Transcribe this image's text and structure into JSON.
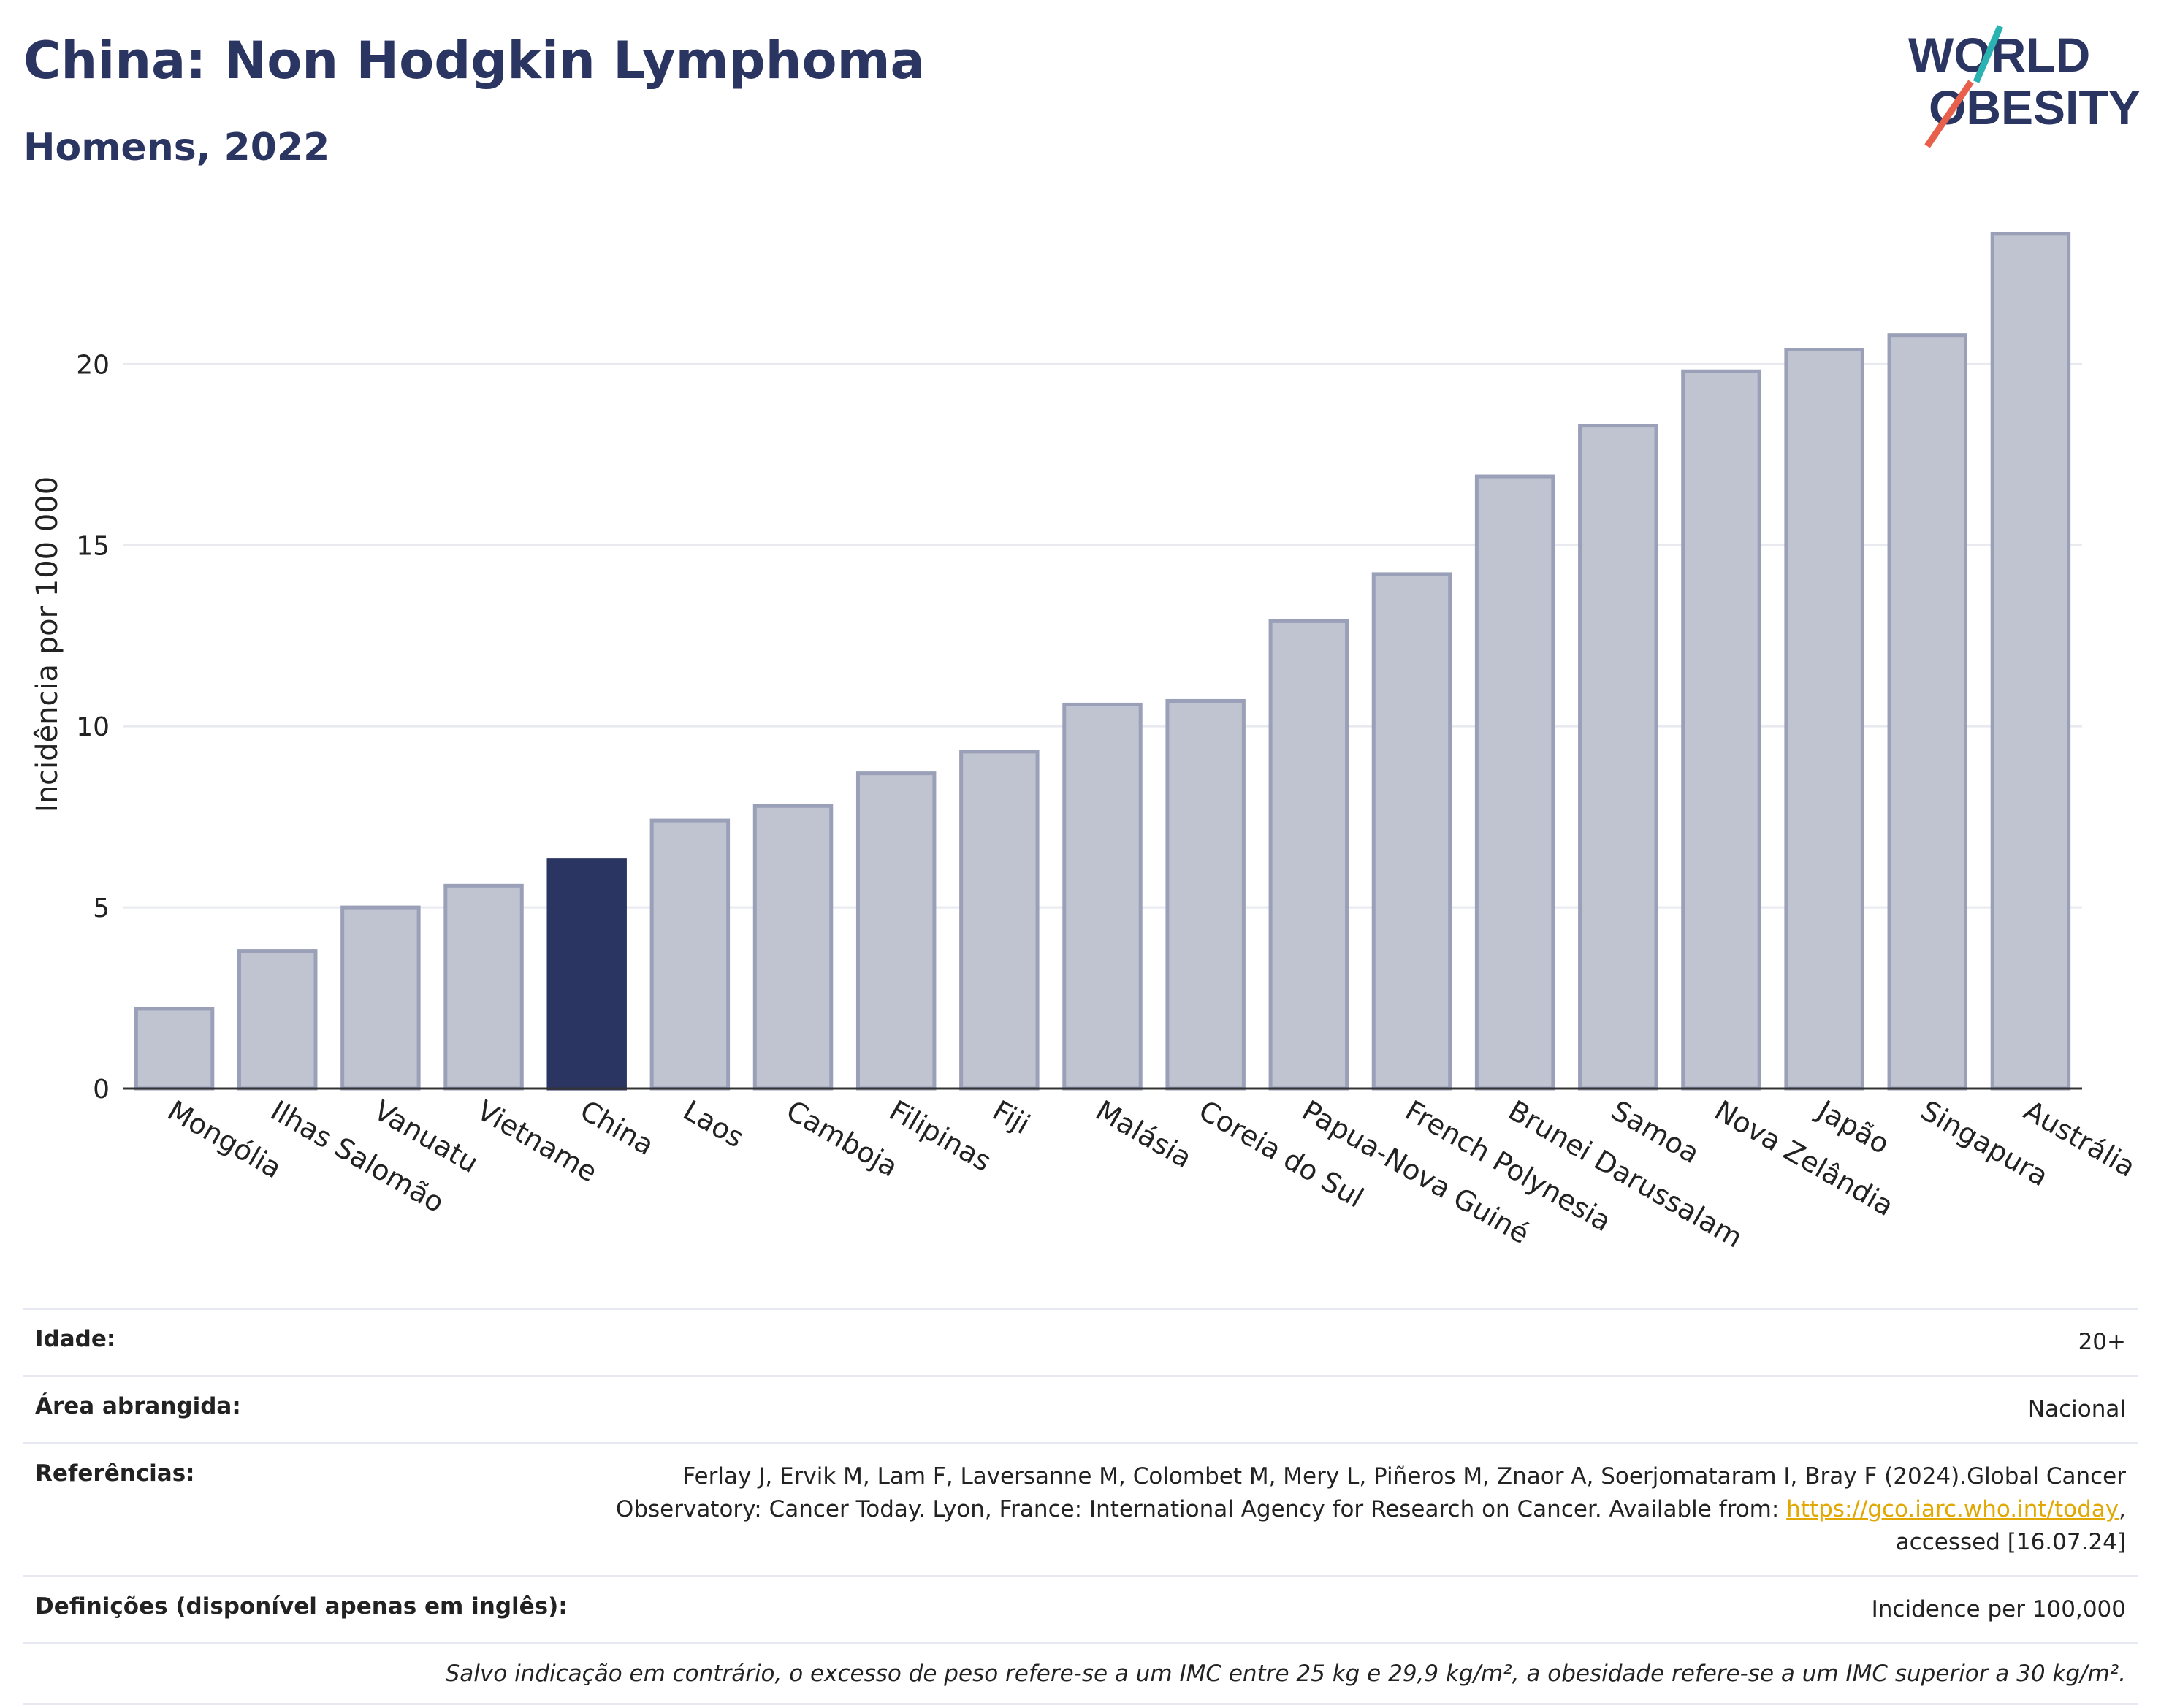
{
  "header": {
    "title": "China: Non Hodgkin Lymphoma",
    "subtitle": "Homens, 2022"
  },
  "logo": {
    "line1": "WORLD",
    "line2": "OBESITY"
  },
  "colors": {
    "highlight": "#2b3561",
    "bar": "#c0c3d0",
    "bar_border": "#9aa0b8",
    "grid": "#e8eaf0",
    "link": "#e0a800"
  },
  "chart_data": {
    "type": "bar",
    "ylabel": "Incidência por 100 000",
    "ylim": [
      0,
      24
    ],
    "yticks": [
      0,
      5,
      10,
      15,
      20
    ],
    "grid": true,
    "highlight": "China",
    "categories": [
      "Mongólia",
      "Ilhas Salomão",
      "Vanuatu",
      "Vietname",
      "China",
      "Laos",
      "Camboja",
      "Filipinas",
      "Fiji",
      "Malásia",
      "Coreia do Sul",
      "Papua-Nova Guiné",
      "French Polynesia",
      "Brunei Darussalam",
      "Samoa",
      "Nova Zelândia",
      "Japão",
      "Singapura",
      "Austrália"
    ],
    "values": [
      2.2,
      3.8,
      5.0,
      5.6,
      6.3,
      7.4,
      7.8,
      8.7,
      9.3,
      10.6,
      10.7,
      12.9,
      14.2,
      16.9,
      18.3,
      19.8,
      20.4,
      20.8,
      23.6
    ]
  },
  "info": {
    "age_label": "Idade:",
    "age_value": "20+",
    "area_label": "Área abrangida:",
    "area_value": "Nacional",
    "ref_label": "Referências:",
    "ref_text_1": "Ferlay J, Ervik M, Lam F, Laversanne M, Colombet M, Mery L, Piñeros M, Znaor A, Soerjomataram I, Bray F (2024).Global Cancer Observatory: Cancer Today. Lyon, France: International Agency for Research on Cancer. Available from: ",
    "ref_link": "https://gco.iarc.who.int/today",
    "ref_text_2": ", accessed [16.07.24]",
    "def_label": "Definições (disponível apenas em inglês):",
    "def_value": "Incidence per 100,000",
    "note": "Salvo indicação em contrário, o excesso de peso refere-se a um IMC entre 25 kg e 29,9 kg/m², a obesidade refere-se a um IMC superior a 30 kg/m²."
  }
}
